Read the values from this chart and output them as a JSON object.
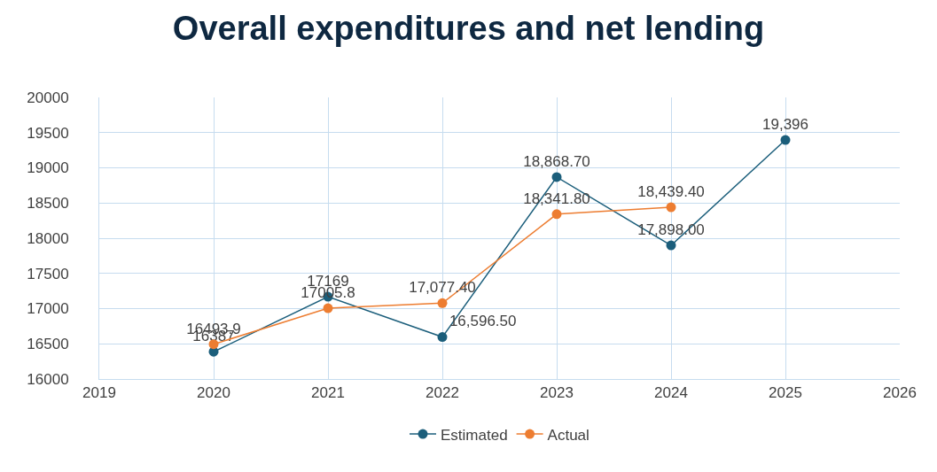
{
  "chart_data": {
    "type": "line",
    "title": "Overall expenditures and net lending",
    "x": [
      2020,
      2021,
      2022,
      2023,
      2024,
      2025
    ],
    "series": [
      {
        "name": "Estimated",
        "color": "#1b5e7b",
        "values": [
          16387,
          17169,
          16596.5,
          18868.7,
          17898,
          19396
        ],
        "value_labels": [
          "16387",
          "17169",
          "16,596.50",
          "18,868.70",
          "17,898.00",
          "19,396"
        ]
      },
      {
        "name": "Actual",
        "color": "#ed7d31",
        "values": [
          16493.9,
          17005.8,
          17077.4,
          18341.8,
          18439.4,
          null
        ],
        "value_labels": [
          "16493.9",
          "17005.8",
          "17,077.40",
          "18,341.80",
          "18,439.40",
          null
        ]
      }
    ],
    "xlim": [
      2019,
      2026
    ],
    "xticks": [
      2019,
      2020,
      2021,
      2022,
      2023,
      2024,
      2025,
      2026
    ],
    "ylim": [
      16000,
      20000
    ],
    "yticks": [
      16000,
      16500,
      17000,
      17500,
      18000,
      18500,
      19000,
      19500,
      20000
    ],
    "grid": true,
    "legend": "bottom",
    "marker": "circle",
    "line_style": "solid"
  }
}
